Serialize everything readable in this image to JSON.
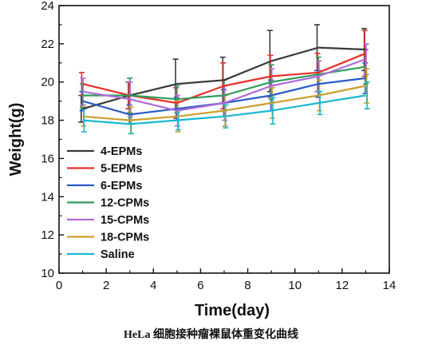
{
  "chart_data": {
    "type": "line",
    "xlabel": "Time(day)",
    "ylabel": "Weight(g)",
    "xlim": [
      0,
      14
    ],
    "ylim": [
      10,
      24
    ],
    "xticks": [
      0,
      2,
      4,
      6,
      8,
      10,
      12,
      14
    ],
    "yticks": [
      10,
      12,
      14,
      16,
      18,
      20,
      22,
      24
    ],
    "grid": false,
    "error_bars": true,
    "legend_position": "lower-left",
    "x": [
      1,
      3,
      5,
      7,
      9,
      11,
      13
    ],
    "series": [
      {
        "name": "4-EPMs",
        "color": "#3a3a3a",
        "values": [
          18.6,
          19.3,
          19.9,
          20.1,
          21.1,
          21.8,
          21.7
        ],
        "errors": [
          0.7,
          0.7,
          1.3,
          1.2,
          1.6,
          1.2,
          1.1
        ]
      },
      {
        "name": "5-EPMs",
        "color": "#e8302a",
        "values": [
          19.9,
          19.3,
          18.9,
          19.8,
          20.3,
          20.5,
          21.5
        ],
        "errors": [
          0.6,
          0.7,
          0.8,
          1.2,
          1.1,
          1.0,
          1.2
        ]
      },
      {
        "name": "6-EPMs",
        "color": "#2a5cc8",
        "values": [
          19.0,
          18.3,
          18.6,
          18.9,
          19.3,
          19.9,
          20.2
        ],
        "errors": [
          0.5,
          0.5,
          0.6,
          0.7,
          0.8,
          0.7,
          0.8
        ]
      },
      {
        "name": "12-CPMs",
        "color": "#2e9c5c",
        "values": [
          19.3,
          19.3,
          19.1,
          19.3,
          20.0,
          20.4,
          20.8
        ],
        "errors": [
          0.6,
          0.9,
          0.7,
          0.8,
          0.9,
          0.9,
          0.9
        ]
      },
      {
        "name": "15-CPMs",
        "color": "#b06ad8",
        "values": [
          19.5,
          19.1,
          18.5,
          18.9,
          19.8,
          20.3,
          21.2
        ],
        "errors": [
          0.7,
          0.9,
          0.8,
          0.9,
          0.9,
          0.8,
          0.8
        ]
      },
      {
        "name": "18-CPMs",
        "color": "#c9a02b",
        "values": [
          18.2,
          18.0,
          18.2,
          18.5,
          18.9,
          19.3,
          19.8
        ],
        "errors": [
          0.5,
          0.7,
          0.8,
          0.8,
          0.8,
          0.8,
          0.9
        ]
      },
      {
        "name": "Saline",
        "color": "#1ab8d0",
        "values": [
          18.0,
          17.8,
          18.0,
          18.2,
          18.5,
          18.9,
          19.3
        ],
        "errors": [
          0.6,
          0.5,
          0.5,
          0.6,
          0.7,
          0.6,
          0.7
        ]
      }
    ]
  },
  "caption": {
    "text": "HeLa 细胞接种瘤裸鼠体重变化曲线"
  }
}
